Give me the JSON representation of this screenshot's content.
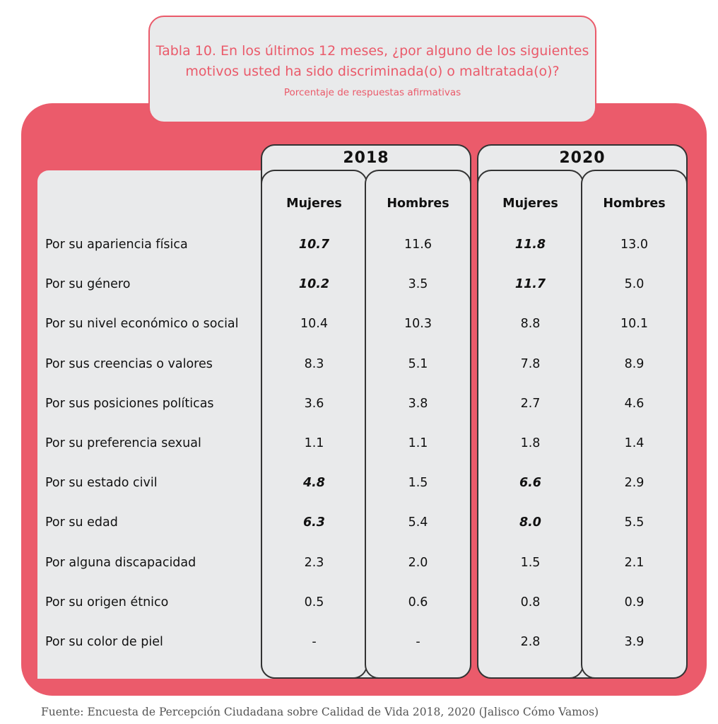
{
  "title": {
    "line1": "Tabla 10. En los últimos 12 meses, ¿por alguno de los siguientes",
    "line2": "motivos usted ha sido discriminada(o) o maltratada(o)?",
    "subtitle": "Porcentaje de respuestas afirmativas"
  },
  "source": "Fuente: Encuesta de Percepción Ciudadana sobre Calidad de Vida 2018, 2020 (Jalisco Cómo Vamos)",
  "colors": {
    "accent": "#eb5b6b",
    "panel": "#e9eaeb",
    "border": "#333333"
  },
  "chart_data": {
    "type": "table",
    "years": [
      "2018",
      "2020"
    ],
    "columns": [
      "Mujeres",
      "Hombres",
      "Mujeres",
      "Hombres"
    ],
    "rows": [
      {
        "label": "Por su apariencia física",
        "values": [
          "10.7",
          "11.6",
          "11.8",
          "13.0"
        ],
        "highlight": [
          true,
          false,
          true,
          false
        ]
      },
      {
        "label": "Por su género",
        "values": [
          "10.2",
          "3.5",
          "11.7",
          "5.0"
        ],
        "highlight": [
          true,
          false,
          true,
          false
        ]
      },
      {
        "label": "Por su nivel económico o social",
        "values": [
          "10.4",
          "10.3",
          "8.8",
          "10.1"
        ],
        "highlight": [
          false,
          false,
          false,
          false
        ]
      },
      {
        "label": "Por sus creencias o valores",
        "values": [
          "8.3",
          "5.1",
          "7.8",
          "8.9"
        ],
        "highlight": [
          false,
          false,
          false,
          false
        ]
      },
      {
        "label": "Por sus posiciones políticas",
        "values": [
          "3.6",
          "3.8",
          "2.7",
          "4.6"
        ],
        "highlight": [
          false,
          false,
          false,
          false
        ]
      },
      {
        "label": "Por su preferencia sexual",
        "values": [
          "1.1",
          "1.1",
          "1.8",
          "1.4"
        ],
        "highlight": [
          false,
          false,
          false,
          false
        ]
      },
      {
        "label": "Por su estado civil",
        "values": [
          "4.8",
          "1.5",
          "6.6",
          "2.9"
        ],
        "highlight": [
          true,
          false,
          true,
          false
        ]
      },
      {
        "label": "Por su edad",
        "values": [
          "6.3",
          "5.4",
          "8.0",
          "5.5"
        ],
        "highlight": [
          true,
          false,
          true,
          false
        ]
      },
      {
        "label": "Por alguna discapacidad",
        "values": [
          "2.3",
          "2.0",
          "1.5",
          "2.1"
        ],
        "highlight": [
          false,
          false,
          false,
          false
        ]
      },
      {
        "label": "Por su origen étnico",
        "values": [
          "0.5",
          "0.6",
          "0.8",
          "0.9"
        ],
        "highlight": [
          false,
          false,
          false,
          false
        ]
      },
      {
        "label": "Por su color de piel",
        "values": [
          "-",
          "-",
          "2.8",
          "3.9"
        ],
        "highlight": [
          false,
          false,
          false,
          false
        ]
      }
    ]
  }
}
